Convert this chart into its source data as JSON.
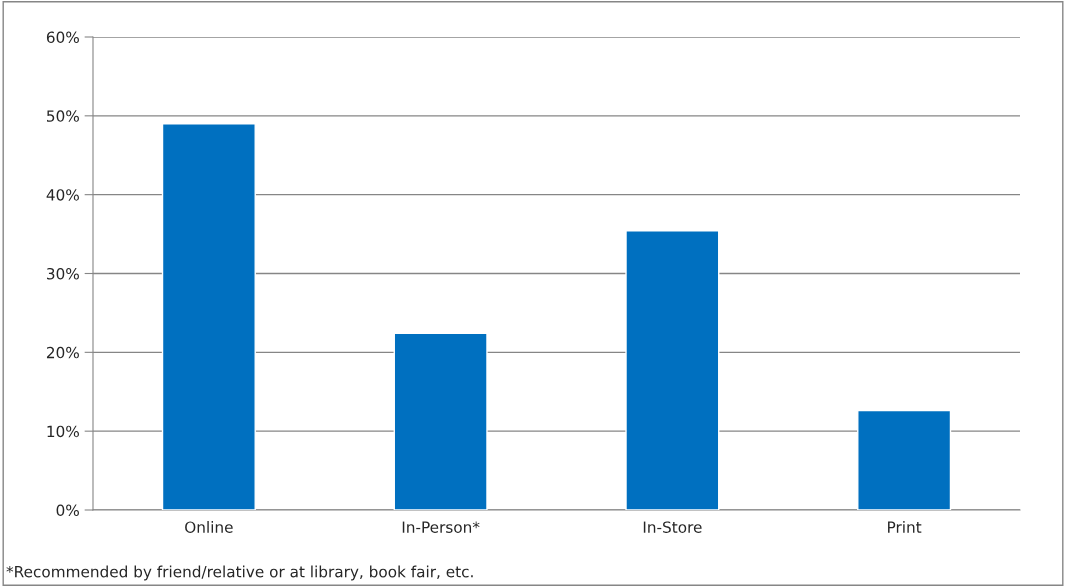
{
  "chart_data": {
    "type": "bar",
    "categories": [
      "Online",
      "In-Person*",
      "In-Store",
      "Print"
    ],
    "values": [
      49,
      22.4,
      35.4,
      12.6
    ],
    "color": "#0070c0",
    "ylim": [
      0,
      60
    ],
    "yticks": [
      {
        "value": 0,
        "label": "0%"
      },
      {
        "value": 10,
        "label": "10%"
      },
      {
        "value": 20,
        "label": "20%"
      },
      {
        "value": 30,
        "label": "30%"
      },
      {
        "value": 40,
        "label": "40%"
      },
      {
        "value": 50,
        "label": "50%"
      },
      {
        "value": 60,
        "label": "60%"
      }
    ],
    "grid": "y",
    "legend": false,
    "annotations": [
      "*Recommended by friend/relative or at library, book fair, etc."
    ]
  }
}
